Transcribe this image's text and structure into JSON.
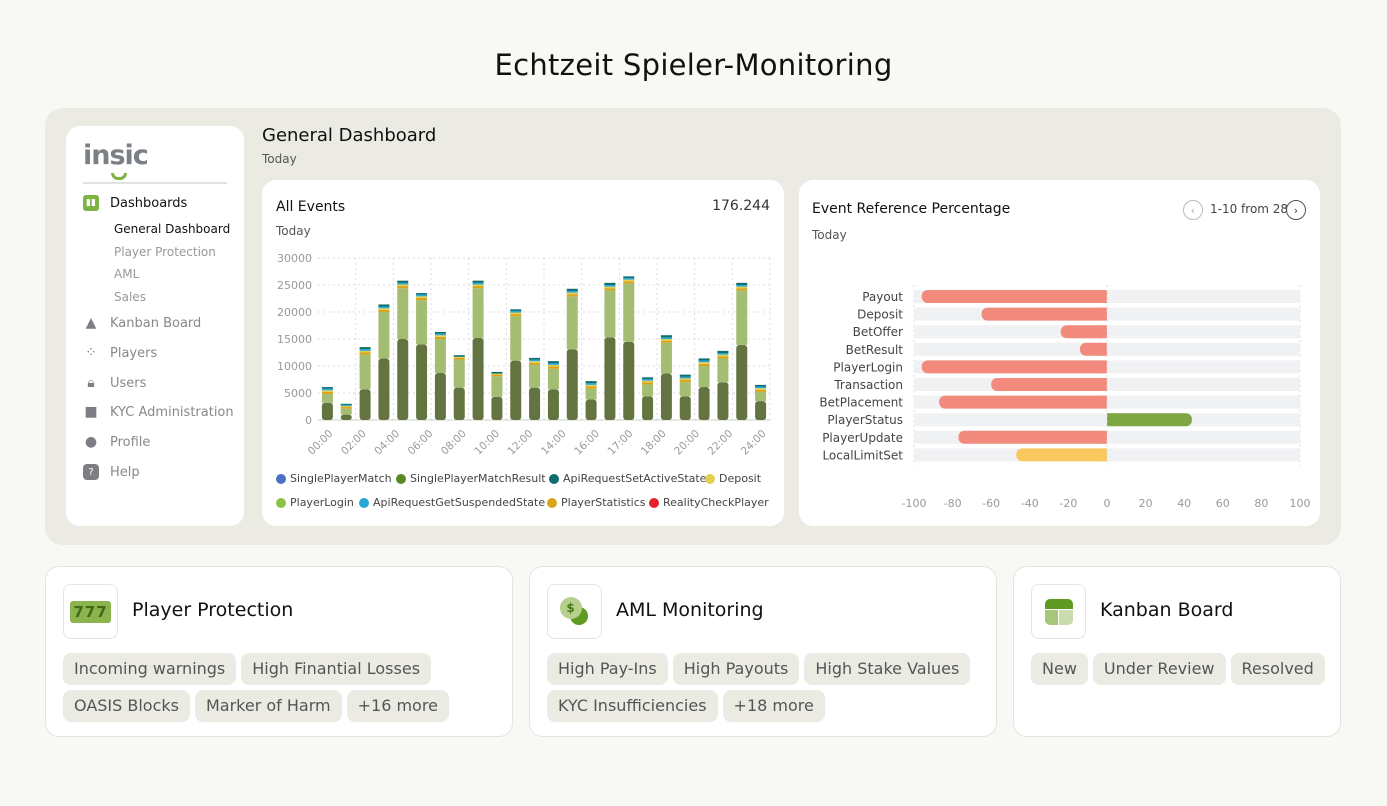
{
  "page_title": "Echtzeit Spieler-Monitoring",
  "sidebar": {
    "logo": "insic",
    "items": [
      {
        "label": "Dashboards",
        "icon": "bar-chart-icon"
      },
      {
        "label": "Kanban Board",
        "icon": "warning-icon"
      },
      {
        "label": "Players",
        "icon": "players-icon"
      },
      {
        "label": "Users",
        "icon": "lock-icon"
      },
      {
        "label": "KYC Administration",
        "icon": "briefcase-icon"
      },
      {
        "label": "Profile",
        "icon": "person-icon"
      },
      {
        "label": "Help",
        "icon": "help-icon"
      }
    ],
    "subitems": [
      "General Dashboard",
      "Player Protection",
      "AML",
      "Sales"
    ]
  },
  "header": {
    "title": "General Dashboard",
    "subtitle": "Today"
  },
  "colors": {
    "accent": "#7cb342",
    "negative": "#f28b7d",
    "positive": "#7ea642",
    "neutral": "#f9c85f"
  },
  "chart_data": [
    {
      "type": "bar",
      "title": "All Events",
      "subtitle": "Today",
      "total": "176.244",
      "ylim": [
        0,
        30000
      ],
      "yticks": [
        "0",
        "5000",
        "10000",
        "15000",
        "20000",
        "25000",
        "30000"
      ],
      "xticks": [
        "00:00",
        "02:00",
        "04:00",
        "06:00",
        "08:00",
        "10:00",
        "12:00",
        "14:00",
        "16:00",
        "17:00",
        "18:00",
        "20:00",
        "22:00",
        "24:00"
      ],
      "legend": [
        {
          "name": "SinglePlayerMatch",
          "color": "#4a6fc4"
        },
        {
          "name": "SinglePlayerMatchResult",
          "color": "#5a8a25"
        },
        {
          "name": "ApiRequestSetActiveState",
          "color": "#0e6e6e"
        },
        {
          "name": "Deposit",
          "color": "#e2cf4f"
        },
        {
          "name": "PlayerLogin",
          "color": "#8bc34a"
        },
        {
          "name": "ApiRequestGetSuspendedState",
          "color": "#29a8d8"
        },
        {
          "name": "PlayerStatistics",
          "color": "#d9a31a"
        },
        {
          "name": "RealityCheckPlayer",
          "color": "#e5222a"
        }
      ],
      "series": [
        {
          "name": "SinglePlayerMatchResult",
          "color": "#637440",
          "values": [
            3200,
            1000,
            5700,
            11400,
            15000,
            14000,
            8700,
            6000,
            15200,
            4300,
            11000,
            6000,
            5700,
            13100,
            3800,
            15300,
            14500,
            4400,
            8600,
            4400,
            6100,
            7000,
            13900,
            3500
          ]
        },
        {
          "name": "PlayerLogin",
          "color": "#a3bd72",
          "values": [
            1600,
            1100,
            6400,
            8600,
            9400,
            8200,
            6300,
            5200,
            9200,
            3800,
            8200,
            4200,
            3800,
            9800,
            2000,
            8700,
            10800,
            2200,
            5700,
            2600,
            3900,
            4400,
            10100,
            1700
          ]
        },
        {
          "name": "PlayerStatistics",
          "color": "#d9a31a",
          "values": [
            400,
            300,
            400,
            400,
            400,
            400,
            400,
            300,
            400,
            300,
            400,
            400,
            400,
            400,
            400,
            400,
            400,
            400,
            400,
            400,
            400,
            400,
            400,
            400
          ]
        },
        {
          "name": "Deposit",
          "color": "#e2cf4f",
          "values": [
            300,
            200,
            300,
            300,
            300,
            300,
            300,
            200,
            300,
            200,
            300,
            300,
            300,
            300,
            300,
            300,
            300,
            300,
            300,
            300,
            300,
            300,
            300,
            300
          ]
        },
        {
          "name": "ApiRequestGetSuspendedState",
          "color": "#29a8d8",
          "values": [
            300,
            200,
            300,
            300,
            300,
            300,
            300,
            0,
            300,
            0,
            300,
            300,
            300,
            300,
            300,
            300,
            300,
            300,
            300,
            300,
            300,
            300,
            300,
            300
          ]
        },
        {
          "name": "ApiRequestSetActiveState",
          "color": "#0e6e6e",
          "values": [
            300,
            200,
            400,
            400,
            400,
            300,
            300,
            300,
            400,
            300,
            300,
            300,
            400,
            400,
            400,
            400,
            300,
            300,
            400,
            400,
            400,
            400,
            400,
            300
          ]
        }
      ]
    },
    {
      "type": "bar",
      "orientation": "horizontal",
      "title": "Event Reference Percentage",
      "subtitle": "Today",
      "pagination": "1-10 from 28",
      "xlim": [
        -100,
        100
      ],
      "xticks": [
        "-100",
        "-80",
        "-60",
        "-40",
        "-20",
        "0",
        "20",
        "40",
        "60",
        "80",
        "100"
      ],
      "categories": [
        "Payout",
        "Deposit",
        "BetOffer",
        "BetResult",
        "PlayerLogin",
        "Transaction",
        "BetPlacement",
        "PlayerStatus",
        "PlayerUpdate",
        "LocalLimitSet"
      ],
      "values": [
        -96,
        -65,
        -24,
        -14,
        -96,
        -60,
        -87,
        44,
        -77,
        -47
      ]
    }
  ],
  "cards": [
    {
      "title": "Player Protection",
      "icon": "slot-machine-icon",
      "tags": [
        "Incoming warnings",
        "High Finantial Losses",
        "OASIS Blocks",
        "Marker of Harm",
        "+16 more"
      ]
    },
    {
      "title": "AML Monitoring",
      "icon": "coins-icon",
      "tags": [
        "High Pay-Ins",
        "High Payouts",
        "High Stake Values",
        "KYC Insufficiencies",
        "+18 more"
      ]
    },
    {
      "title": "Kanban Board",
      "icon": "kanban-icon",
      "tags": [
        "New",
        "Under Review",
        "Resolved"
      ]
    }
  ]
}
